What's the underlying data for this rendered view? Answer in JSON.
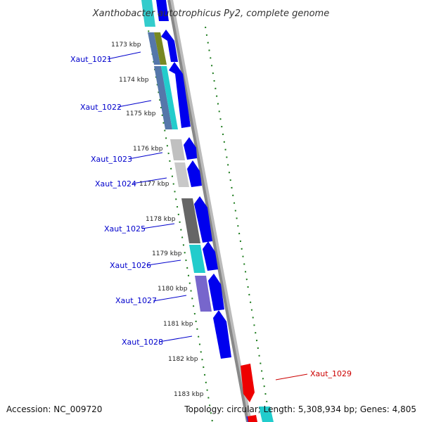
{
  "title": "Xanthobacter autotrophicus Py2, complete genome",
  "footer": {
    "accession": "Accession: NC_009720",
    "summary": "Topology: circular; Length: 5,308,934 bp; Genes: 4,805"
  },
  "colors": {
    "gene_forward": "#0000ee",
    "label_blue": "#0000cc",
    "label_red": "#cc0000",
    "gene_red": "#ee0000",
    "backbone": "#888888",
    "tick": "#1a7a1a"
  },
  "kbp_ticks": [
    "1173 kbp",
    "1174 kbp",
    "1175 kbp",
    "1176 kbp",
    "1177 kbp",
    "1178 kbp",
    "1179 kbp",
    "1180 kbp",
    "1181 kbp",
    "1182 kbp",
    "1183 kbp"
  ],
  "genes": [
    {
      "label": "Xaut_1021",
      "color": "blue"
    },
    {
      "label": "Xaut_1022",
      "color": "blue"
    },
    {
      "label": "Xaut_1023",
      "color": "blue"
    },
    {
      "label": "Xaut_1024",
      "color": "blue"
    },
    {
      "label": "Xaut_1025",
      "color": "blue"
    },
    {
      "label": "Xaut_1026",
      "color": "blue"
    },
    {
      "label": "Xaut_1027",
      "color": "blue"
    },
    {
      "label": "Xaut_1028",
      "color": "blue"
    },
    {
      "label": "Xaut_1029",
      "color": "red"
    }
  ]
}
